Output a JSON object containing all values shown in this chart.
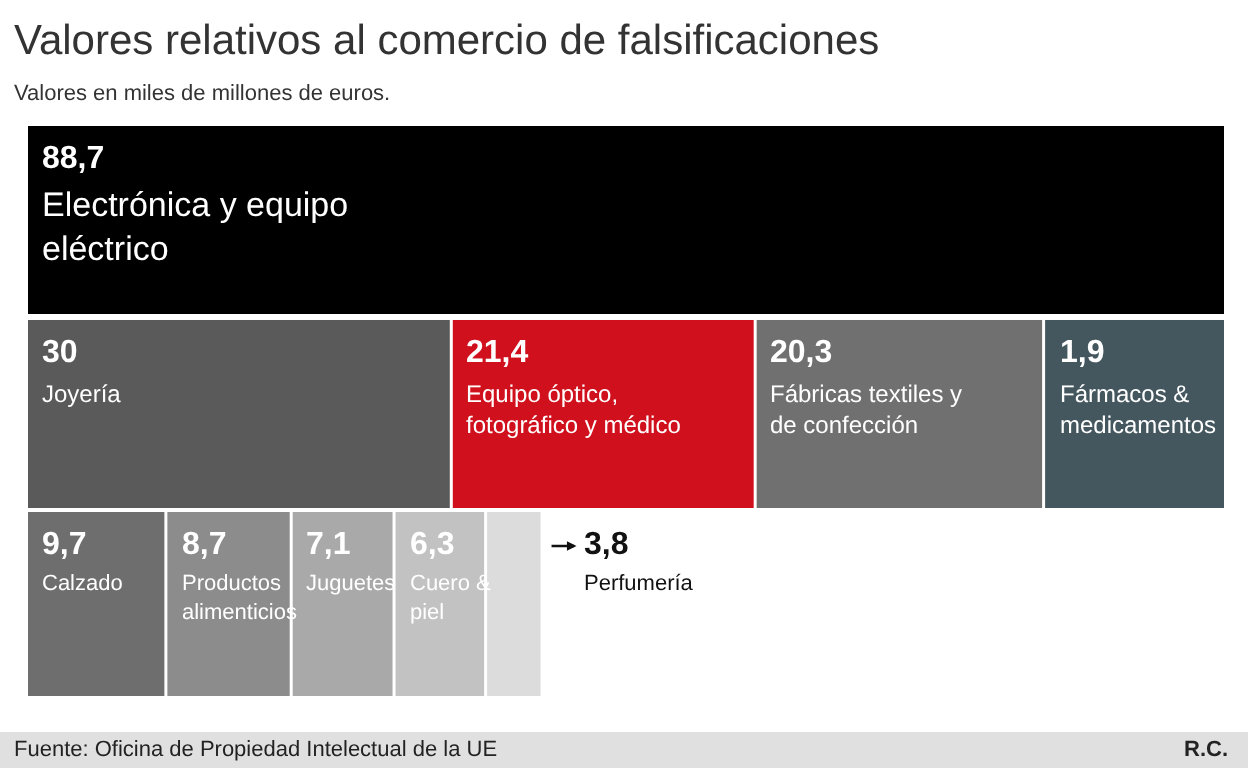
{
  "chart_data": {
    "type": "other",
    "title": "Valores relativos al comercio de falsificaciones",
    "subtitle": "Valores en miles de millones de euros.",
    "categories": [
      "Electrónica y equipo eléctrico",
      "Joyería",
      "Equipo óptico, fotográfico y médico",
      "Fábricas textiles y de confección",
      "Fármacos & medicamentos",
      "Calzado",
      "Productos alimenticios",
      "Juguetes",
      "Cuero & piel",
      "Perfumería"
    ],
    "values": [
      88.7,
      30,
      21.4,
      20.3,
      1.9,
      9.7,
      8.7,
      7.1,
      6.3,
      3.8
    ],
    "value_labels": [
      "88,7",
      "30",
      "21,4",
      "20,3",
      "1,9",
      "9,7",
      "8,7",
      "7,1",
      "6,3",
      "3,8"
    ],
    "colors": [
      "#000000",
      "#5a5a5a",
      "#d0101c",
      "#707070",
      "#44575f",
      "#6e6e6e",
      "#8c8c8c",
      "#a9a9a9",
      "#c2c2c2",
      "#dcdcdc"
    ],
    "annotations": [
      "Fuente: Oficina de Propiedad Intelectual de la UE",
      "R.C."
    ]
  }
}
